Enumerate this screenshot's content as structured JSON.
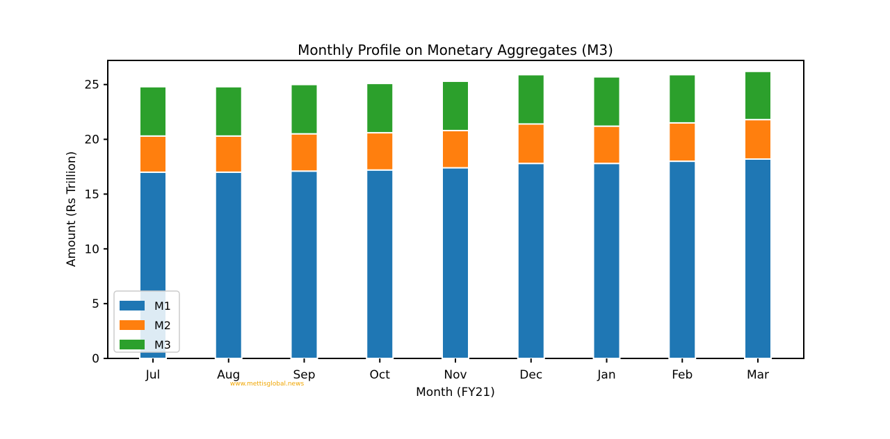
{
  "chart_data": {
    "type": "bar",
    "stacked": true,
    "title": "Monthly Profile on Monetary Aggregates (M3)",
    "xlabel": "Month (FY21)",
    "ylabel": "Amount (Rs Trillion)",
    "categories": [
      "Jul",
      "Aug",
      "Sep",
      "Oct",
      "Nov",
      "Dec",
      "Jan",
      "Feb",
      "Mar"
    ],
    "series": [
      {
        "name": "M1",
        "color": "#1f77b4",
        "values": [
          17.0,
          17.0,
          17.1,
          17.2,
          17.4,
          17.8,
          17.8,
          18.0,
          18.2
        ]
      },
      {
        "name": "M2",
        "color": "#ff7f0e",
        "values": [
          3.3,
          3.3,
          3.4,
          3.4,
          3.4,
          3.6,
          3.4,
          3.5,
          3.6
        ]
      },
      {
        "name": "M3",
        "color": "#2ca02c",
        "values": [
          4.5,
          4.5,
          4.5,
          4.5,
          4.5,
          4.5,
          4.5,
          4.4,
          4.4
        ]
      }
    ],
    "ylim": [
      0,
      27.2
    ],
    "yticks": [
      0,
      5,
      10,
      15,
      20,
      25
    ],
    "grid": false,
    "legend_position": "lower-left"
  },
  "watermark": "www.mettisglobal.news"
}
